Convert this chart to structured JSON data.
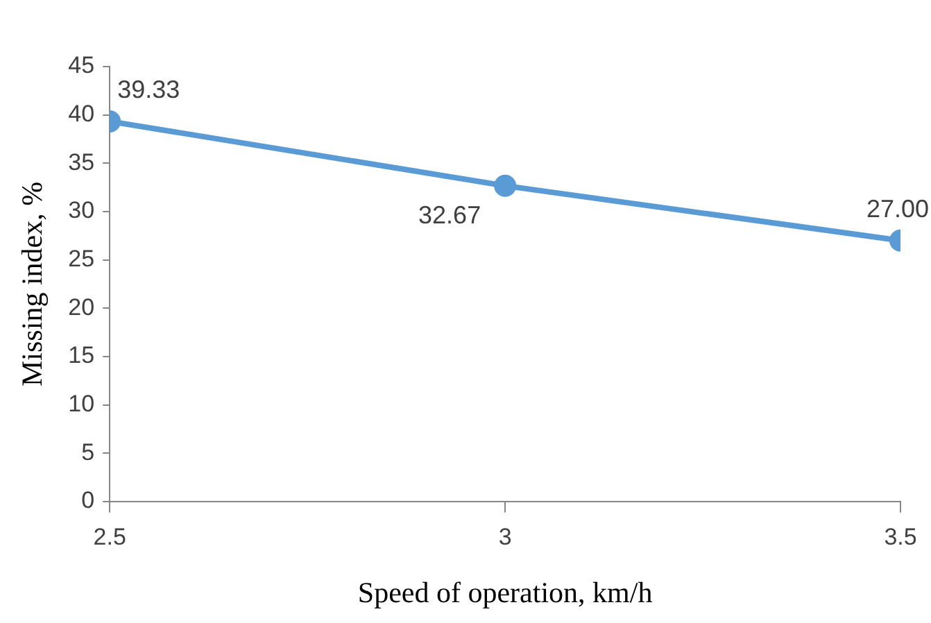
{
  "chart_data": {
    "type": "line",
    "xlabel": "Speed of operation, km/h",
    "ylabel": "Missing index, %",
    "x": [
      2.5,
      3,
      3.5
    ],
    "series": [
      {
        "color": "#5b9bd5",
        "values": [
          39.33,
          32.67,
          27.0
        ],
        "value_labels": [
          "39.33",
          "32.67",
          "27.00"
        ]
      }
    ],
    "xlim": [
      2.5,
      3.5
    ],
    "xticks": [
      2.5,
      3,
      3.5
    ],
    "ylim": [
      0,
      45
    ],
    "yticks": [
      0,
      5,
      10,
      15,
      20,
      25,
      30,
      35,
      40,
      45
    ],
    "grid": false,
    "legend": false,
    "marker": "circle",
    "line_style": "solid"
  }
}
